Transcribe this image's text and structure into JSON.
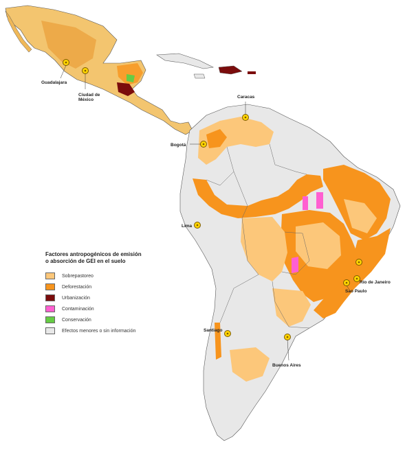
{
  "legend": {
    "title_line1": "Factores antropogénicos de emisión",
    "title_line2": "o absorción de GEI en el suelo",
    "items": [
      {
        "label": "Sobrepastoreo",
        "color": "#fcc77a"
      },
      {
        "label": "Deforestación",
        "color": "#f7941d"
      },
      {
        "label": "Urbanización",
        "color": "#7b0c0c"
      },
      {
        "label": "Contaminación",
        "color": "#ff5fd1"
      },
      {
        "label": "Conservación",
        "color": "#66cc44"
      },
      {
        "label": "Efectos menores o sin información",
        "color": "#e8e8e8"
      }
    ]
  },
  "cities": {
    "guadalajara": "Guadalajara",
    "mexico_line1": "Ciudad de",
    "mexico_line2": "México",
    "caracas": "Caracas",
    "bogota": "Bogotá",
    "lima": "Lima",
    "rio": "Río de Janeiro",
    "sao_paulo": "Sao Paulo",
    "santiago": "Santiago",
    "buenos_aires": "Buenos Aires"
  },
  "colors": {
    "land": "#e8e8e8",
    "border": "#555555",
    "sea": "#ffffff",
    "marker_fill": "#ffd400",
    "marker_stroke": "#7a5a00"
  }
}
